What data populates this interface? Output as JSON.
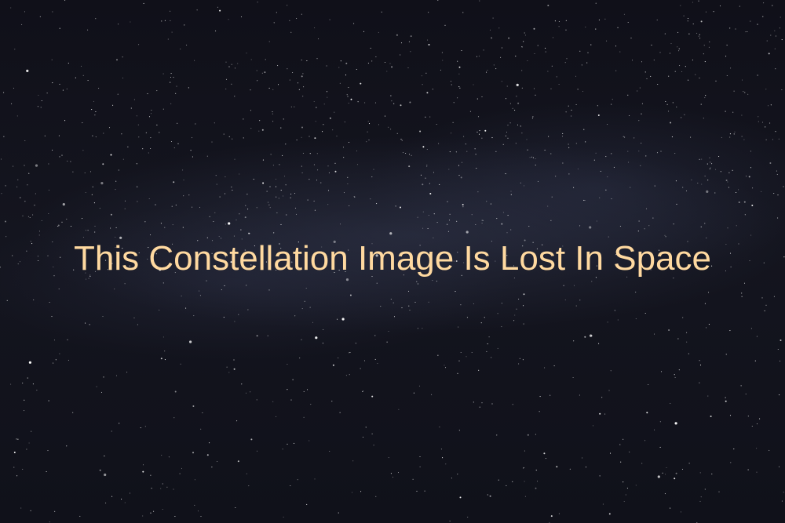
{
  "message": "This Constellation Image Is Lost In Space",
  "colors": {
    "text": "#ffd9a0",
    "sky": "#10111a",
    "stars": "#ffffff"
  }
}
